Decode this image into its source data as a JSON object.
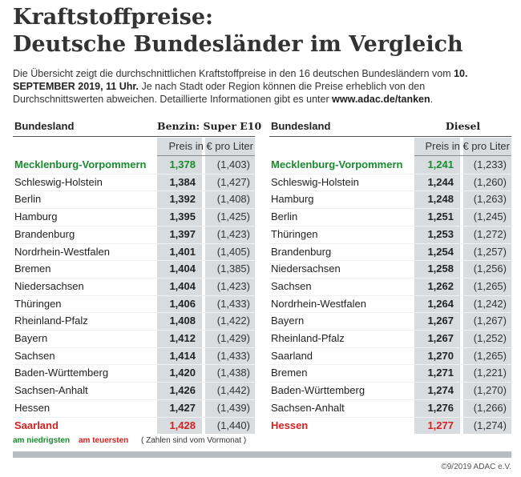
{
  "header": {
    "title_lines": [
      "Kraftstoffpreise:",
      "Deutsche Bundesländer im Vergleich"
    ],
    "intro": [
      {
        "text": "Die Übersicht zeigt die durchschnittlichen Kraftstoffpreise in den 16 deutschen Bundesländern vom "
      },
      {
        "text": "10. SEPTEMBER 2019, 11 Uhr.",
        "bold": true
      },
      {
        "text": " Je nach Stadt oder Region können die Preise erheblich von den Durchschnittswerten abweichen. Detaillierte Informationen gibt es unter "
      },
      {
        "text": "www.adac.de/tanken",
        "bold": true
      },
      {
        "text": "."
      }
    ]
  },
  "tables": [
    {
      "columns": [
        "Bundesland",
        "Benzin: Super E10"
      ],
      "unit": "Preis in € pro Liter",
      "rows": [
        [
          "Mecklenburg-Vorpommern",
          "1,378",
          "(1,403)"
        ],
        [
          "Schleswig-Holstein",
          "1,384",
          "(1,427)"
        ],
        [
          "Berlin",
          "1,392",
          "(1,408)"
        ],
        [
          "Hamburg",
          "1,395",
          "(1,425)"
        ],
        [
          "Brandenburg",
          "1,397",
          "(1,423)"
        ],
        [
          "Nordrhein-Westfalen",
          "1,401",
          "(1,405)"
        ],
        [
          "Bremen",
          "1,404",
          "(1,385)"
        ],
        [
          "Niedersachsen",
          "1,404",
          "(1,423)"
        ],
        [
          "Thüringen",
          "1,406",
          "(1,433)"
        ],
        [
          "Rheinland-Pfalz",
          "1,408",
          "(1,422)"
        ],
        [
          "Bayern",
          "1,412",
          "(1,429)"
        ],
        [
          "Sachsen",
          "1,414",
          "(1,433)"
        ],
        [
          "Baden-Württemberg",
          "1,420",
          "(1,438)"
        ],
        [
          "Sachsen-Anhalt",
          "1,426",
          "(1,442)"
        ],
        [
          "Hessen",
          "1,427",
          "(1,439)"
        ],
        [
          "Saarland",
          "1,428",
          "(1,440)"
        ]
      ]
    },
    {
      "columns": [
        "Bundesland",
        "Diesel"
      ],
      "unit": "Preis in € pro Liter",
      "rows": [
        [
          "Mecklenburg-Vorpommern",
          "1,241",
          "(1,233)"
        ],
        [
          "Schleswig-Holstein",
          "1,244",
          "(1,260)"
        ],
        [
          "Hamburg",
          "1,248",
          "(1,263)"
        ],
        [
          "Berlin",
          "1,251",
          "(1,245)"
        ],
        [
          "Thüringen",
          "1,253",
          "(1,272)"
        ],
        [
          "Brandenburg",
          "1,254",
          "(1,257)"
        ],
        [
          "Niedersachsen",
          "1,258",
          "(1,256)"
        ],
        [
          "Sachsen",
          "1,262",
          "(1,265)"
        ],
        [
          "Nordrhein-Westfalen",
          "1,264",
          "(1,242)"
        ],
        [
          "Bayern",
          "1,267",
          "(1,267)"
        ],
        [
          "Rheinland-Pfalz",
          "1,267",
          "(1,252)"
        ],
        [
          "Saarland",
          "1,270",
          "(1,265)"
        ],
        [
          "Bremen",
          "1,271",
          "(1,221)"
        ],
        [
          "Baden-Württemberg",
          "1,274",
          "(1,270)"
        ],
        [
          "Sachsen-Anhalt",
          "1,276",
          "(1,266)"
        ],
        [
          "Hessen",
          "1,277",
          "(1,274)"
        ]
      ]
    }
  ],
  "legend": {
    "lowest": "am niedrigsten",
    "highest": "am teuersten",
    "note": "( Zahlen sind vom Vormonat )"
  },
  "footer": "©9/2019 ADAC e.V."
}
